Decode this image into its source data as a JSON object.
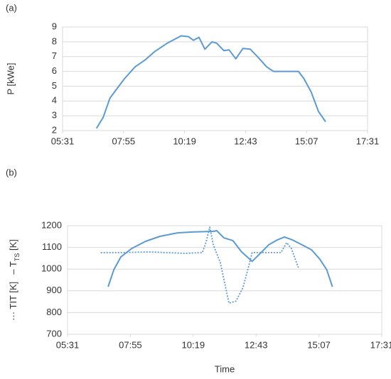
{
  "chart_data": [
    {
      "type": "line",
      "label": "(a)",
      "ylabel": "P [kWe]",
      "grid": true,
      "xlim": [
        331,
        1051
      ],
      "xticks": [
        {
          "value": 331,
          "label": "05:31"
        },
        {
          "value": 475,
          "label": "07:55"
        },
        {
          "value": 619,
          "label": "10:19"
        },
        {
          "value": 763,
          "label": "12:43"
        },
        {
          "value": 907,
          "label": "15:07"
        },
        {
          "value": 1051,
          "label": "17:31"
        }
      ],
      "ylim": [
        2,
        9
      ],
      "yticks": [
        2,
        3,
        4,
        5,
        6,
        7,
        8,
        9
      ],
      "series": [
        {
          "name": "P",
          "color": "#5b9bd5",
          "dash": "solid",
          "x": [
            411,
            427,
            443,
            477,
            502,
            527,
            549,
            578,
            611,
            628,
            640,
            653,
            667,
            684,
            695,
            712,
            724,
            740,
            757,
            774,
            791,
            813,
            829,
            855,
            888,
            901,
            918,
            935,
            952
          ],
          "values": [
            2.15,
            2.9,
            4.2,
            5.5,
            6.3,
            6.8,
            7.35,
            7.9,
            8.4,
            8.35,
            8.1,
            8.3,
            7.5,
            8.0,
            7.9,
            7.4,
            7.45,
            6.85,
            7.55,
            7.5,
            7.0,
            6.3,
            6.0,
            6.0,
            6.0,
            5.5,
            4.6,
            3.3,
            2.6
          ]
        }
      ]
    },
    {
      "type": "line",
      "label": "(b)",
      "xlabel": "Time",
      "grid": true,
      "ylabel_parts": [
        "··· TIT [K]",
        "– T",
        "TS",
        " [K]"
      ],
      "xlim": [
        331,
        1051
      ],
      "xticks": [
        {
          "value": 331,
          "label": "05:31"
        },
        {
          "value": 475,
          "label": "07:55"
        },
        {
          "value": 619,
          "label": "10:19"
        },
        {
          "value": 763,
          "label": "12:43"
        },
        {
          "value": 907,
          "label": "15:07"
        },
        {
          "value": 1051,
          "label": "17:31"
        }
      ],
      "ylim": [
        700,
        1200
      ],
      "yticks": [
        700,
        800,
        900,
        1000,
        1100,
        1200
      ],
      "series": [
        {
          "name": "TTS",
          "color": "#5b9bd5",
          "dash": "solid",
          "x": [
            424,
            437,
            453,
            478,
            510,
            543,
            583,
            616,
            665,
            673,
            689,
            710,
            730,
            754,
            771,
            792,
            811,
            828,
            847,
            868,
            890,
            909,
            925,
            938
          ],
          "values": [
            919,
            997,
            1056,
            1095,
            1128,
            1151,
            1167,
            1171,
            1174,
            1177,
            1144,
            1131,
            1079,
            1036,
            1069,
            1112,
            1134,
            1148,
            1134,
            1112,
            1089,
            1046,
            997,
            919
          ]
        },
        {
          "name": "TIT",
          "color": "#5b9bd5",
          "dash": "dotted",
          "x": [
            407,
            453,
            518,
            600,
            640,
            649,
            657,
            665,
            681,
            701,
            717,
            733,
            746,
            754,
            787,
            820,
            833,
            844,
            860
          ],
          "values": [
            1076,
            1076,
            1079,
            1073,
            1076,
            1128,
            1193,
            1112,
            1030,
            843,
            853,
            915,
            1013,
            1076,
            1076,
            1076,
            1122,
            1095,
            1007
          ]
        }
      ]
    }
  ]
}
